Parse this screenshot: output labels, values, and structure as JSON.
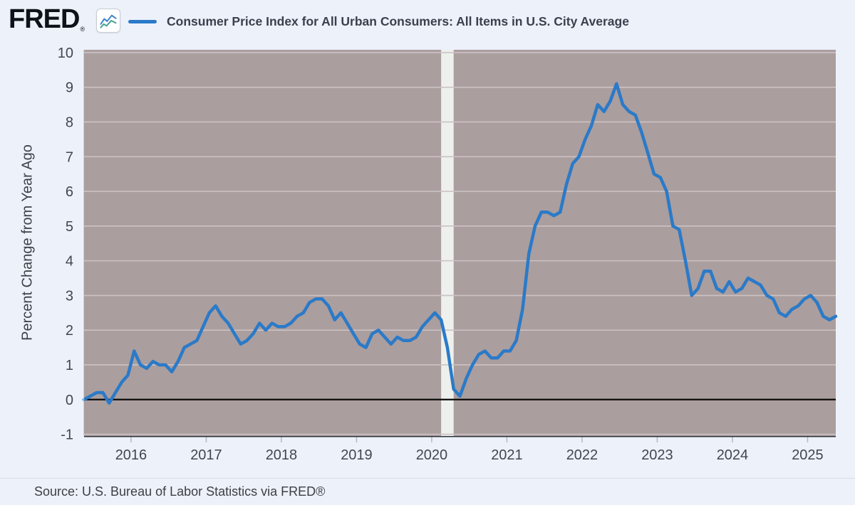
{
  "header": {
    "logo_text": "FRED",
    "registered_mark": "®",
    "series_title": "Consumer Price Index for All Urban Consumers: All Items in U.S. City Average"
  },
  "footer": {
    "source": "Source: U.S. Bureau of Labor Statistics via FRED®"
  },
  "icons": {
    "logo_chart_icon": "sparkline-chart-icon"
  },
  "chart_data": {
    "type": "line",
    "title": "Consumer Price Index for All Urban Consumers: All Items in U.S. City Average",
    "xlabel": "",
    "ylabel": "Percent Change from Year Ago",
    "frequency": "monthly",
    "x_start_month": "2015-05",
    "x_end_month": "2025-05",
    "values": [
      0.0,
      0.1,
      0.2,
      0.2,
      -0.1,
      0.2,
      0.5,
      0.7,
      1.4,
      1.0,
      0.9,
      1.1,
      1.0,
      1.0,
      0.8,
      1.1,
      1.5,
      1.6,
      1.7,
      2.1,
      2.5,
      2.7,
      2.4,
      2.2,
      1.9,
      1.6,
      1.7,
      1.9,
      2.2,
      2.0,
      2.2,
      2.1,
      2.1,
      2.2,
      2.4,
      2.5,
      2.8,
      2.9,
      2.9,
      2.7,
      2.3,
      2.5,
      2.2,
      1.9,
      1.6,
      1.5,
      1.9,
      2.0,
      1.8,
      1.6,
      1.8,
      1.7,
      1.7,
      1.8,
      2.1,
      2.3,
      2.5,
      2.3,
      1.5,
      0.3,
      0.1,
      0.6,
      1.0,
      1.3,
      1.4,
      1.2,
      1.2,
      1.4,
      1.4,
      1.7,
      2.6,
      4.2,
      5.0,
      5.4,
      5.4,
      5.3,
      5.4,
      6.2,
      6.8,
      7.0,
      7.5,
      7.9,
      8.5,
      8.3,
      8.6,
      9.1,
      8.5,
      8.3,
      8.2,
      7.7,
      7.1,
      6.5,
      6.4,
      6.0,
      5.0,
      4.9,
      4.0,
      3.0,
      3.2,
      3.7,
      3.7,
      3.2,
      3.1,
      3.4,
      3.1,
      3.2,
      3.5,
      3.4,
      3.3,
      3.0,
      2.9,
      2.5,
      2.4,
      2.6,
      2.7,
      2.9,
      3.0,
      2.8,
      2.4,
      2.3,
      2.4
    ],
    "x_ticks": [
      2016,
      2017,
      2018,
      2019,
      2020,
      2021,
      2022,
      2023,
      2024,
      2025
    ],
    "y_ticks": [
      -1,
      0,
      1,
      2,
      3,
      4,
      5,
      6,
      7,
      8,
      9,
      10
    ],
    "ylim": [
      -1.05,
      10.08
    ],
    "xlim_years": [
      2015.375,
      2025.375
    ],
    "recession_band": {
      "start_month": "2020-02",
      "end_month": "2020-04"
    },
    "grid": "horizontal",
    "legend_position": "top",
    "colors": {
      "line": "#2b7ac8",
      "plot_bg": "#ab9e9e",
      "recession_band": "#edf0ec",
      "gridline": "#cbc2c5",
      "zero_line": "#0a0a0a",
      "tick_mark": "#b7bcc8",
      "axis_line": "#2e323a",
      "plot_left_edge": "#ccd1db"
    }
  }
}
